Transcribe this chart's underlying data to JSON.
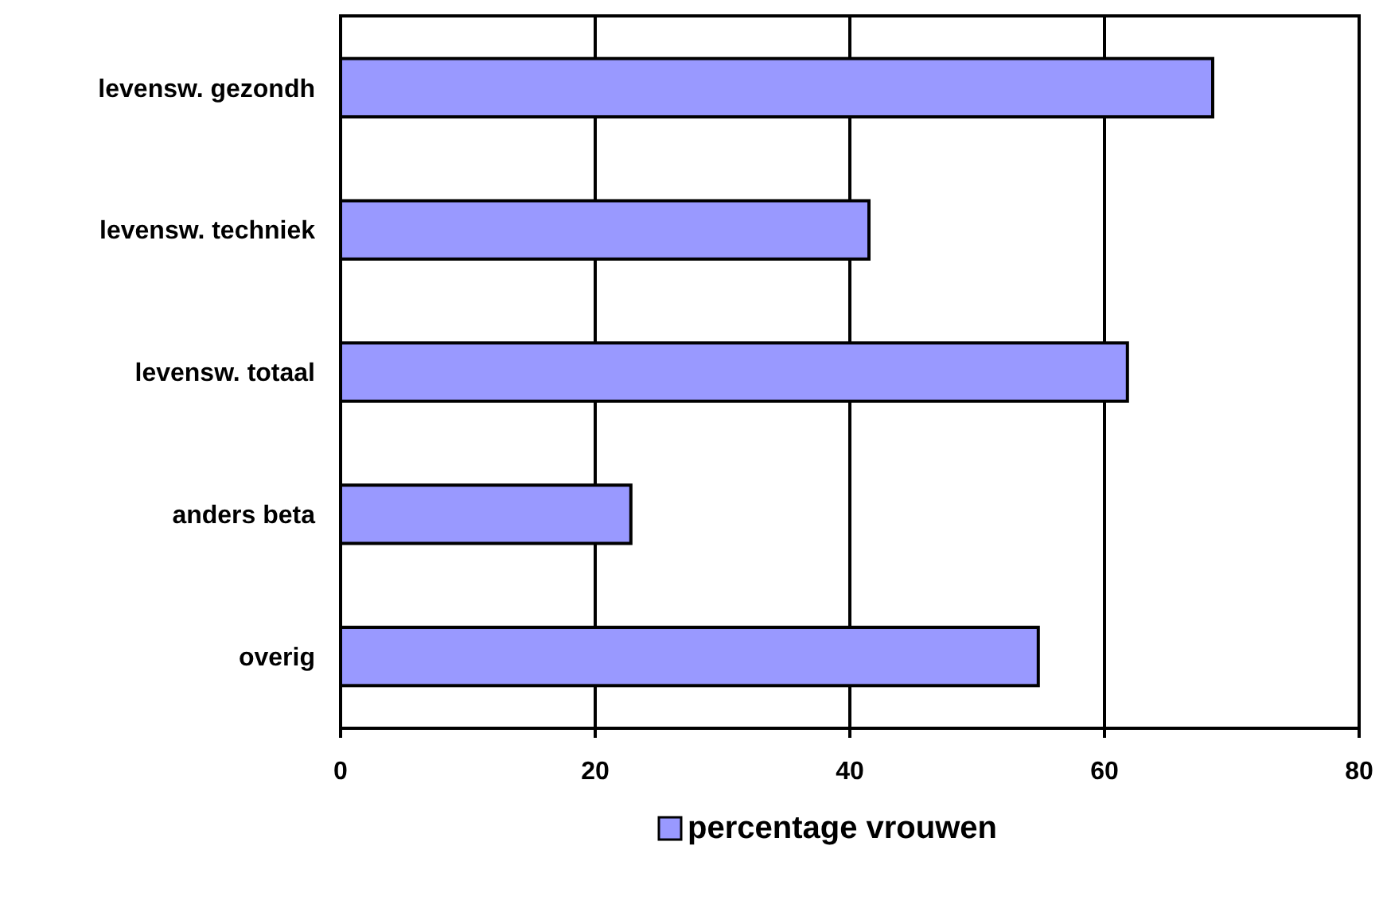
{
  "chart_data": {
    "type": "bar",
    "orientation": "horizontal",
    "categories": [
      "levensw. gezondh",
      "levensw. techniek",
      "levensw. totaal",
      "anders beta",
      "overig"
    ],
    "series": [
      {
        "name": "percentage vrouwen",
        "color": "#9999ff",
        "values": [
          68.5,
          41.5,
          61.8,
          22.8,
          54.8
        ]
      }
    ],
    "xlim": [
      0,
      80
    ],
    "xticks": [
      0,
      20,
      40,
      60,
      80
    ],
    "grid": "x",
    "legend": "bottom"
  }
}
